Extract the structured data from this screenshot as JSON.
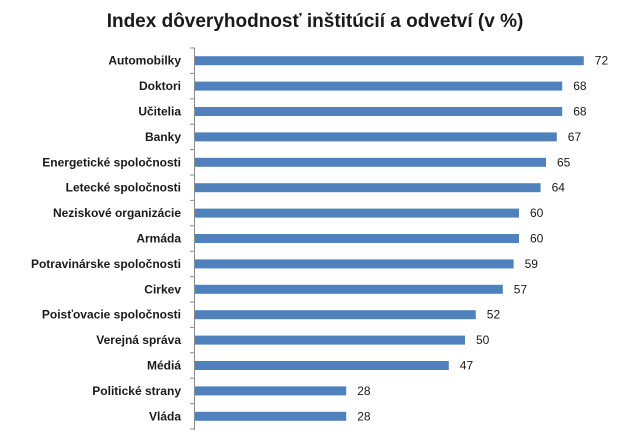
{
  "chart_data": {
    "type": "bar",
    "orientation": "horizontal",
    "title": "Index dôveryhodnosť inštitúcií a odvetví (v %)",
    "categories": [
      "Automobilky",
      "Doktori",
      "Učitelia",
      "Banky",
      "Energetické spoločnosti",
      "Letecké spoločnosti",
      "Neziskové organizácie",
      "Armáda",
      "Potravinárske spoločnosti",
      "Cirkev",
      "Poisťovacie spoločnosti",
      "Verejná správa",
      "Médiá",
      "Politické strany",
      "Vláda"
    ],
    "values": [
      72,
      68,
      68,
      67,
      65,
      64,
      60,
      60,
      59,
      57,
      52,
      50,
      47,
      28,
      28
    ],
    "xlim": [
      0,
      80
    ],
    "data_labels": true,
    "grid": false,
    "legend": "none",
    "bar_color": "#4f81bd"
  }
}
